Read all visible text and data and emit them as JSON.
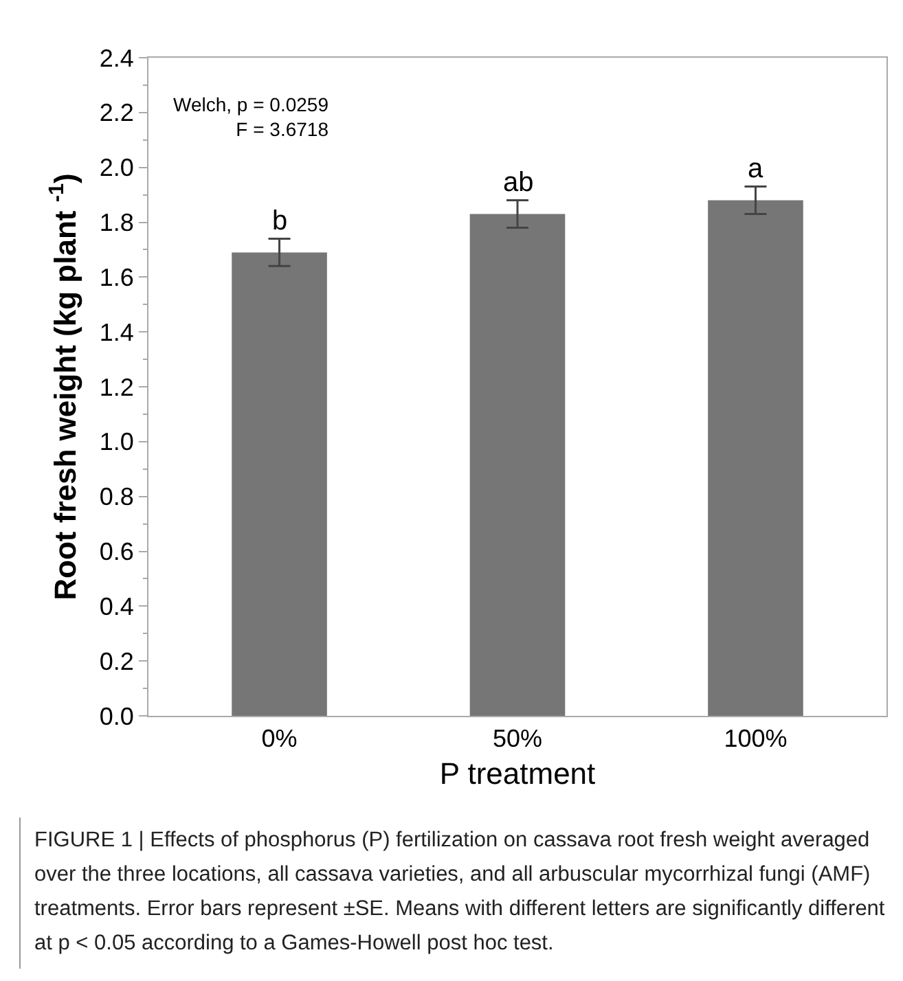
{
  "chart_data": {
    "type": "bar",
    "xlabel": "P treatment",
    "ylabel": "Root fresh weight (kg plant $^{-1}$)",
    "categories": [
      "0%",
      "50%",
      "100%"
    ],
    "values": [
      1.69,
      1.83,
      1.88
    ],
    "errors": [
      0.05,
      0.05,
      0.05
    ],
    "color": "#767676",
    "ylim": [
      0,
      2.4
    ],
    "yticks": [
      {
        "value": 0,
        "label": "0.0"
      },
      {
        "value": 0.2,
        "label": "0.2"
      },
      {
        "value": 0.4,
        "label": "0.4"
      },
      {
        "value": 0.6,
        "label": "0.6"
      },
      {
        "value": 0.8,
        "label": "0.8"
      },
      {
        "value": 1.0,
        "label": "1.0"
      },
      {
        "value": 1.2,
        "label": "1.2"
      },
      {
        "value": 1.4,
        "label": "1.4"
      },
      {
        "value": 1.6,
        "label": "1.6"
      },
      {
        "value": 1.8,
        "label": "1.8"
      },
      {
        "value": 2.0,
        "label": "2.0"
      },
      {
        "value": 2.2,
        "label": "2.2"
      },
      {
        "value": 2.4,
        "label": "2.4"
      }
    ],
    "grid": false,
    "legend": false,
    "annotations": [
      {
        "text": "b",
        "x": "0%",
        "y": 1.74
      },
      {
        "text": "ab",
        "x": "50%",
        "y": 1.88
      },
      {
        "text": "a",
        "x": "100%",
        "y": 1.93
      },
      "Welch, p = 0.0259\nF = 3.6718",
      "FIGURE 1 | Effects of phosphorus (P) fertilization on cassava root fresh weight averaged over the three locations, all cassava varieties, and all arbuscular mycorrhizal fungi (AMF) treatments. Error bars represent ±SE. Means with different letters are significantly different at p < 0.05 according to a Games-Howell post hoc test."
    ]
  }
}
